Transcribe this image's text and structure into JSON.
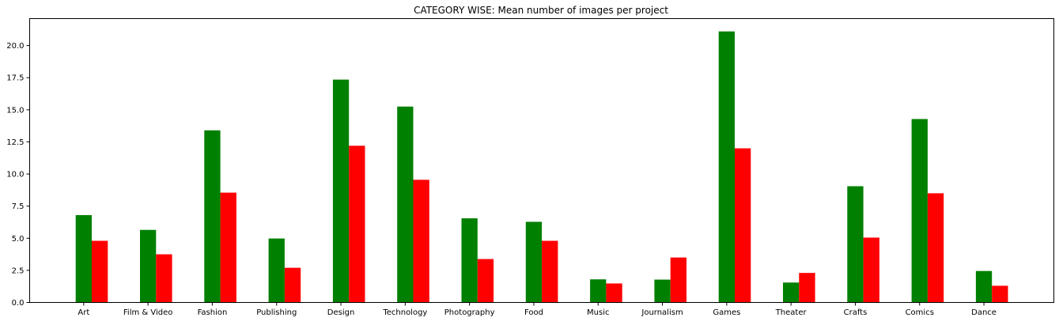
{
  "chart_data": {
    "type": "bar",
    "title": "CATEGORY WISE: Mean number of images per project",
    "xlabel": "",
    "ylabel": "",
    "categories": [
      "Art",
      "Film & Video",
      "Fashion",
      "Publishing",
      "Design",
      "Technology",
      "Photography",
      "Food",
      "Music",
      "Journalism",
      "Games",
      "Theater",
      "Crafts",
      "Comics",
      "Dance"
    ],
    "series": [
      {
        "color": "#008000",
        "values": [
          6.8,
          5.65,
          13.4,
          4.98,
          17.35,
          15.25,
          6.55,
          6.28,
          1.8,
          1.78,
          21.1,
          1.55,
          9.05,
          14.28,
          2.45
        ]
      },
      {
        "color": "#ff0000",
        "values": [
          4.8,
          3.75,
          8.55,
          2.7,
          12.2,
          9.55,
          3.38,
          4.8,
          1.48,
          3.5,
          12.0,
          2.3,
          5.05,
          8.5,
          1.3
        ]
      }
    ],
    "ylim": [
      0,
      22.1
    ],
    "yticks": [
      0.0,
      2.5,
      5.0,
      7.5,
      10.0,
      12.5,
      15.0,
      17.5,
      20.0
    ],
    "ytick_labels": [
      "0.0",
      "2.5",
      "5.0",
      "7.5",
      "10.0",
      "12.5",
      "15.0",
      "17.5",
      "20.0"
    ],
    "grid": false,
    "legend": "none"
  }
}
